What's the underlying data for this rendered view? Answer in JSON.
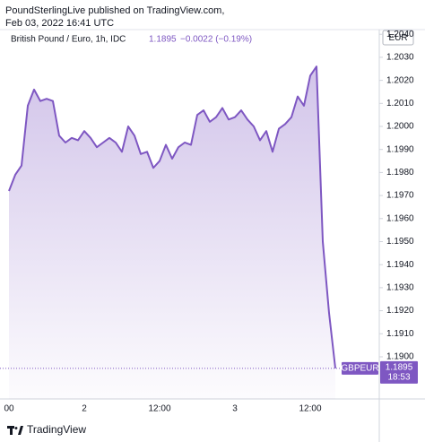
{
  "header": {
    "line1": "PoundSterlingLive published on TradingView.com,",
    "line2": "Feb 03, 2022 16:41 UTC"
  },
  "brand": "TradingView",
  "chart_data": {
    "type": "area",
    "title": "British Pound / Euro, 1h, IDC",
    "change_label": "−0.0022 (−0.19%)",
    "currency": "EUR",
    "symbol": "GBPEUR",
    "time_label": "18:53",
    "color": "#7e57c2",
    "categories": [
      "00",
      null,
      null,
      null,
      null,
      null,
      null,
      null,
      null,
      null,
      null,
      null,
      "2",
      null,
      null,
      null,
      null,
      null,
      null,
      null,
      null,
      null,
      null,
      null,
      "12:00",
      null,
      null,
      null,
      null,
      null,
      null,
      null,
      null,
      null,
      null,
      null,
      "3",
      null,
      null,
      null,
      null,
      null,
      null,
      null,
      null,
      null,
      null,
      null,
      "12:00",
      null,
      null,
      null,
      null
    ],
    "values": [
      1.1972,
      1.1979,
      1.1983,
      1.2009,
      1.2016,
      1.2011,
      1.2012,
      1.2011,
      1.1996,
      1.1993,
      1.1995,
      1.1994,
      1.1998,
      1.1995,
      1.1991,
      1.1993,
      1.1995,
      1.1993,
      1.1989,
      1.2,
      1.1996,
      1.1988,
      1.1989,
      1.1982,
      1.1985,
      1.1992,
      1.1986,
      1.1991,
      1.1993,
      1.1992,
      1.2005,
      1.2007,
      1.2002,
      1.2004,
      1.2008,
      1.2003,
      1.2004,
      1.2007,
      1.2003,
      1.2,
      1.1994,
      1.1998,
      1.1989,
      1.1999,
      1.2001,
      1.2004,
      1.2013,
      1.2009,
      1.2022,
      1.2026,
      1.195,
      1.1919,
      1.1895
    ],
    "ylim": [
      1.18817,
      1.20432
    ],
    "yticks": [
      {
        "value": 1.19,
        "label": "1.1900"
      },
      {
        "value": 1.191,
        "label": "1.1910"
      },
      {
        "value": 1.192,
        "label": "1.1920"
      },
      {
        "value": 1.193,
        "label": "1.1930"
      },
      {
        "value": 1.194,
        "label": "1.1940"
      },
      {
        "value": 1.195,
        "label": "1.1950"
      },
      {
        "value": 1.196,
        "label": "1.1960"
      },
      {
        "value": 1.197,
        "label": "1.1970"
      },
      {
        "value": 1.198,
        "label": "1.1980"
      },
      {
        "value": 1.199,
        "label": "1.1990"
      },
      {
        "value": 1.2,
        "label": "1.2000"
      },
      {
        "value": 1.201,
        "label": "1.2010"
      },
      {
        "value": 1.202,
        "label": "1.2020"
      },
      {
        "value": 1.203,
        "label": "1.2030"
      },
      {
        "value": 1.204,
        "label": "1.2040"
      }
    ],
    "grid": false
  }
}
